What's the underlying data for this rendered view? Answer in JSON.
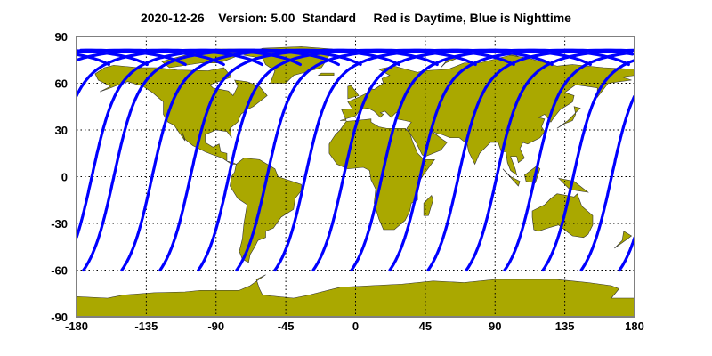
{
  "title": "2020-12-26    Version: 5.00  Standard     Red is Daytime, Blue is Nighttime",
  "map": {
    "projection": "equirectangular",
    "lon_range": [
      -180,
      180
    ],
    "lat_range": [
      -90,
      90
    ],
    "grid": "dotted",
    "x_ticks": [
      "-180",
      "-135",
      "-90",
      "-45",
      "0",
      "45",
      "90",
      "135",
      "180"
    ],
    "y_ticks": [
      "90",
      "60",
      "30",
      "0",
      "-30",
      "-60",
      "-90"
    ],
    "land_color": "#AAA800",
    "ocean_color": "#FFFFFF",
    "night_track_color": "#0000FF",
    "day_track_color": "#FF0000",
    "track_start_latitude": -60,
    "track_start_longitudes": [
      -175.5,
      -150.8,
      -126.1,
      -101.4,
      -76.7,
      -52.0,
      -27.3,
      -2.6,
      22.1,
      46.8,
      71.5,
      96.2,
      120.9,
      145.6,
      170.3
    ]
  }
}
